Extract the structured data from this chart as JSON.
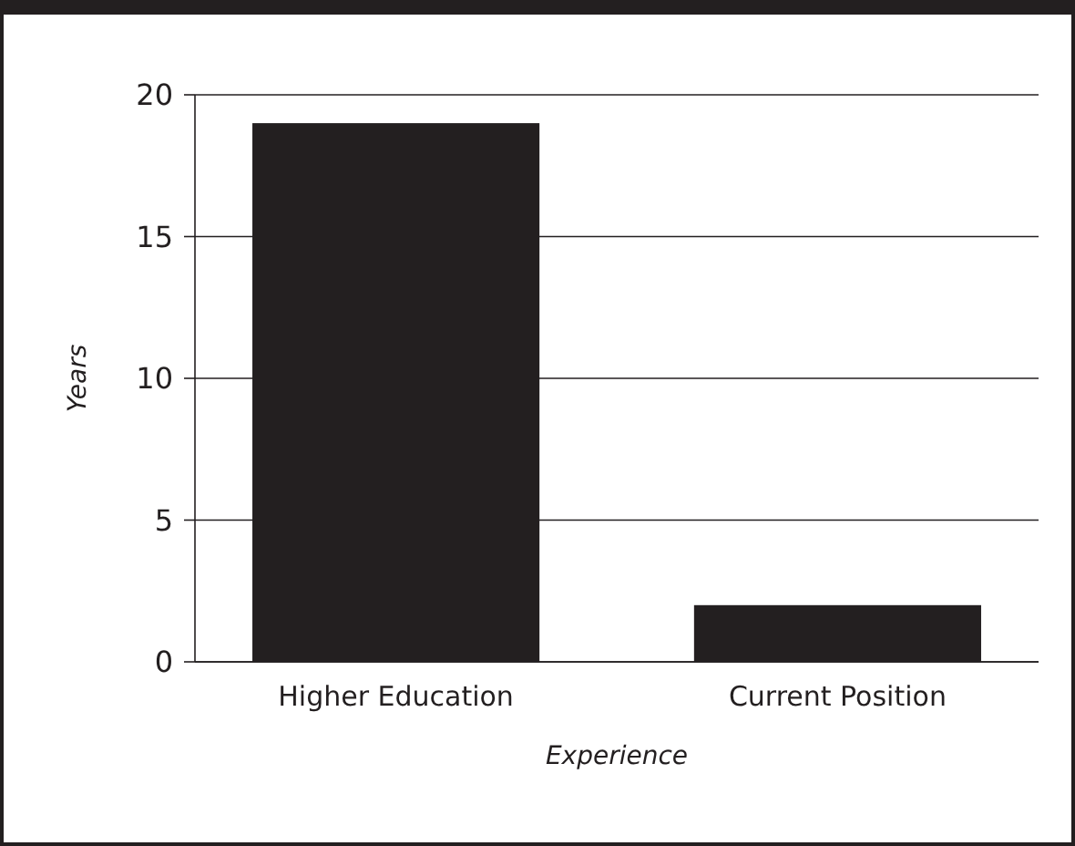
{
  "chart_data": {
    "type": "bar",
    "xlabel": "Experience",
    "ylabel": "Years",
    "categories": [
      "Higher Education",
      "Current Position"
    ],
    "values": [
      19,
      2
    ],
    "color": "#231f20",
    "ylim": [
      0,
      20
    ],
    "yticks": [
      0,
      5,
      10,
      15,
      20
    ],
    "grid": "y"
  }
}
